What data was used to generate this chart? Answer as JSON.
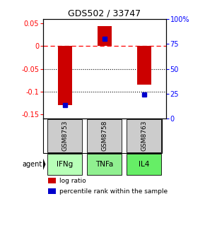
{
  "title": "GDS502 / 33747",
  "samples": [
    "GSM8753",
    "GSM8758",
    "GSM8763"
  ],
  "agents": [
    "IFNg",
    "TNFa",
    "IL4"
  ],
  "log_ratios": [
    -0.13,
    0.045,
    -0.085
  ],
  "percentile_ranks": [
    0.14,
    0.8,
    0.24
  ],
  "ylim_left": [
    -0.16,
    0.06
  ],
  "ylim_right": [
    0.0,
    1.0
  ],
  "yticks_left": [
    0.05,
    0.0,
    -0.05,
    -0.1,
    -0.15
  ],
  "yticks_right": [
    1.0,
    0.75,
    0.5,
    0.25,
    0.0
  ],
  "ytick_labels_left": [
    "0.05",
    "0",
    "-0.05",
    "-0.1",
    "-0.15"
  ],
  "ytick_labels_right": [
    "100%",
    "75",
    "50",
    "25",
    "0"
  ],
  "bar_color": "#cc0000",
  "dot_color": "#0000cc",
  "agent_colors": [
    "#b8ffb8",
    "#90f090",
    "#66ee66"
  ],
  "sample_bg": "#cccccc",
  "background_color": "#ffffff",
  "bar_width": 0.35
}
